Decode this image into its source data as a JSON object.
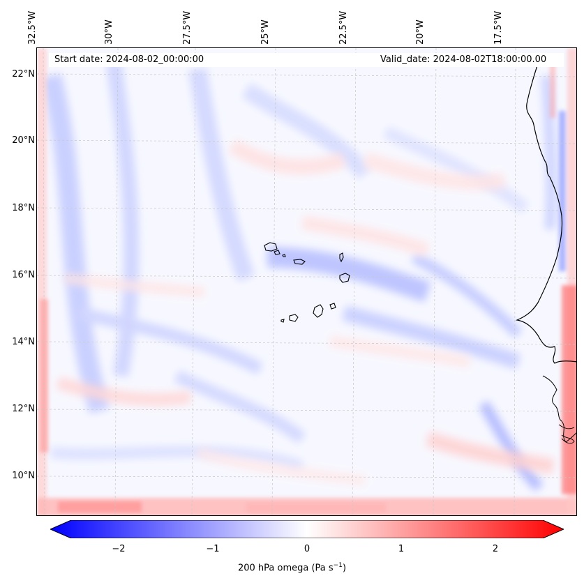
{
  "header": {
    "start_date": "Start date: 2024-08-02_00:00:00",
    "valid_date": "Valid_date: 2024-08-02T18:00:00.00"
  },
  "longitude_labels": [
    "32.5°W",
    "30°W",
    "27.5°W",
    "25°W",
    "22.5°W",
    "20°W",
    "17.5°W"
  ],
  "latitude_labels": [
    "22°N",
    "20°N",
    "18°N",
    "16°N",
    "14°N",
    "12°N",
    "10°N"
  ],
  "colorbar": {
    "ticks": [
      "−2",
      "−1",
      "0",
      "1",
      "2"
    ],
    "title": "200 hPa omega (Pa s",
    "title_unit_exp": "−1",
    "title_close": ")",
    "color_min": "#0000ff",
    "color_mid": "#ffffff",
    "color_max": "#ff0000",
    "range": [
      -2.6,
      2.6
    ]
  },
  "map": {
    "coastline_color": "#000000",
    "gridline_color": "#c8c8c8",
    "field": "200 hPa omega",
    "region": "Cabo Verde / West African coast"
  }
}
